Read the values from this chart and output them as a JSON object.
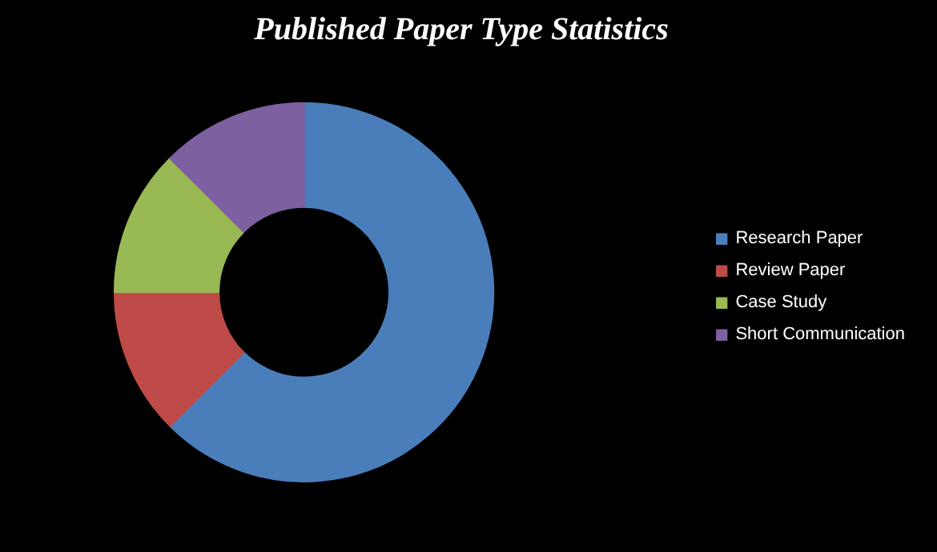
{
  "chart_data": {
    "type": "donut",
    "title": "Published Paper Type Statistics",
    "categories": [
      "Research Paper",
      "Review Paper",
      "Case Study",
      "Short Communication"
    ],
    "values": [
      62.5,
      12.5,
      12.5,
      12.5
    ],
    "colors": [
      "#4a7ebb",
      "#be4b48",
      "#98b954",
      "#7d60a0"
    ],
    "legend": "right"
  }
}
